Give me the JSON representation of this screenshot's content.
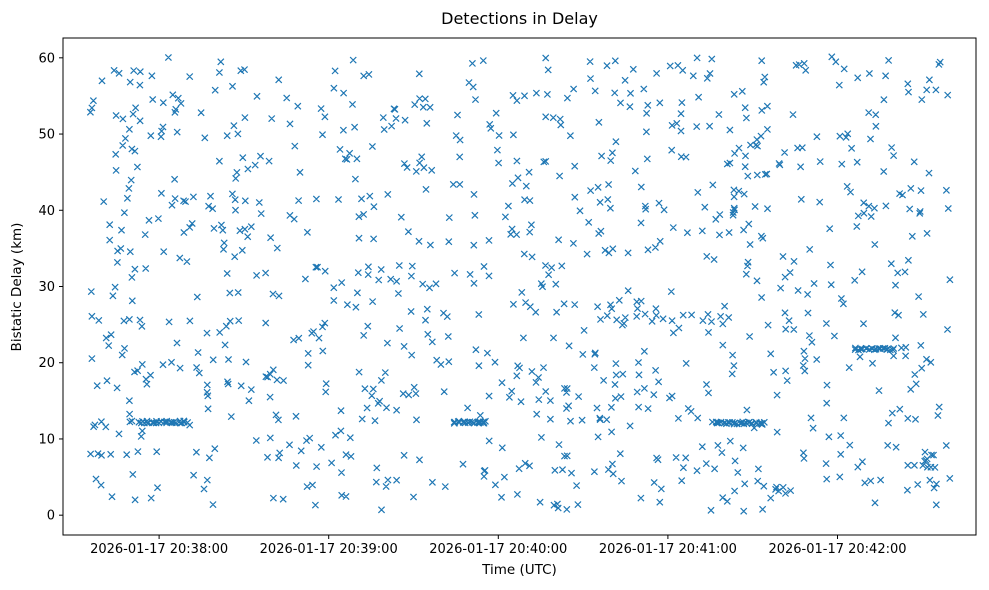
{
  "chart_data": {
    "type": "scatter",
    "title": "Detections in Delay",
    "xlabel": "Time (UTC)",
    "ylabel": "Bistatic Delay (km)",
    "marker": "x",
    "marker_color": "#1f77b4",
    "grid": false,
    "legend": null,
    "x_base_label": "2026-01-17 20:37:00",
    "x_range_seconds": [
      26,
      349
    ],
    "x_tick_seconds": [
      60,
      120,
      180,
      240,
      300
    ],
    "x_tick_labels": [
      "2026-01-17 20:38:00",
      "2026-01-17 20:39:00",
      "2026-01-17 20:40:00",
      "2026-01-17 20:41:00",
      "2026-01-17 20:42:00"
    ],
    "y_range": [
      -2.6,
      62.6
    ],
    "y_ticks": [
      0,
      10,
      20,
      30,
      40,
      50,
      60
    ],
    "y_tick_labels": [
      "0",
      "10",
      "20",
      "30",
      "40",
      "50",
      "60"
    ],
    "random_scatter": {
      "seed": 20260117,
      "count": 950,
      "t_min_s": 35,
      "t_max_s": 340,
      "y_min": 0.5,
      "y_max": 60.2
    },
    "tracks": [
      {
        "t_start_s": 53,
        "t_end_s": 70,
        "y": 12.2,
        "count": 28,
        "jitter": 0.15
      },
      {
        "t_start_s": 164,
        "t_end_s": 176,
        "y": 12.2,
        "count": 24,
        "jitter": 0.15
      },
      {
        "t_start_s": 256,
        "t_end_s": 274,
        "y": 12.1,
        "count": 30,
        "jitter": 0.15
      },
      {
        "t_start_s": 306,
        "t_end_s": 320,
        "y": 21.8,
        "count": 22,
        "jitter": 0.15
      },
      {
        "t_start_s": 222,
        "t_end_s": 262,
        "y": 25.9,
        "count": 13,
        "jitter": 0.6
      },
      {
        "t_start_s": 330,
        "t_end_s": 334,
        "y": 7.0,
        "count": 9,
        "jitter": 0.9
      }
    ]
  }
}
